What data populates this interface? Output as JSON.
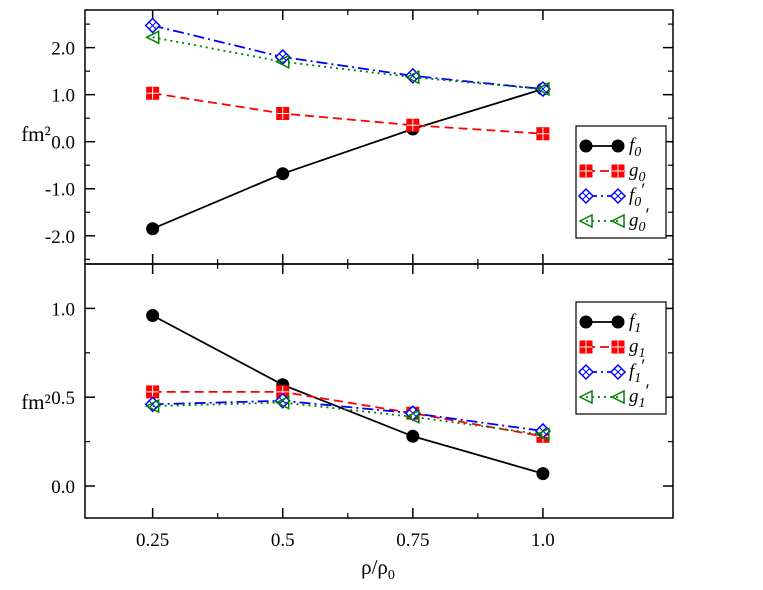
{
  "chart_data": [
    {
      "type": "line",
      "panel": "top",
      "title": "",
      "xlabel": "",
      "ylabel": "fm²",
      "x": [
        0.25,
        0.5,
        0.75,
        1.0
      ],
      "xlim": [
        0.12,
        1.25
      ],
      "ylim": [
        -2.6,
        2.8
      ],
      "yticks": [
        -2.0,
        -1.0,
        0.0,
        1.0,
        2.0
      ],
      "ytick_labels": [
        "-2.0",
        "-1.0",
        "0.0",
        "1.0",
        "2.0"
      ],
      "legend_position": "right",
      "series": [
        {
          "name": "f0",
          "label": "f",
          "sub": "0",
          "prime": false,
          "values": [
            -1.85,
            -0.68,
            0.27,
            1.12
          ],
          "color": "#000000",
          "marker": "circle",
          "dash": "solid"
        },
        {
          "name": "g0",
          "label": "g",
          "sub": "0",
          "prime": false,
          "values": [
            1.03,
            0.6,
            0.35,
            0.17
          ],
          "color": "#ff0000",
          "marker": "square",
          "dash": "dashed"
        },
        {
          "name": "f0'",
          "label": "f",
          "sub": "0",
          "prime": true,
          "values": [
            2.47,
            1.8,
            1.4,
            1.12
          ],
          "color": "#0000ff",
          "marker": "diamond",
          "dash": "dashdot"
        },
        {
          "name": "g0'",
          "label": "g",
          "sub": "0",
          "prime": true,
          "values": [
            2.22,
            1.7,
            1.37,
            1.12
          ],
          "color": "#008000",
          "marker": "triangle",
          "dash": "dotted"
        }
      ]
    },
    {
      "type": "line",
      "panel": "bottom",
      "title": "",
      "xlabel": "ρ/ρ0",
      "xlabel_main": "ρ/ρ",
      "xlabel_sub": "0",
      "ylabel": "fm²",
      "x": [
        0.25,
        0.5,
        0.75,
        1.0
      ],
      "xlim": [
        0.12,
        1.25
      ],
      "ylim": [
        -0.18,
        1.25
      ],
      "xticks": [
        0.25,
        0.5,
        0.75,
        1.0
      ],
      "xtick_labels": [
        "0.25",
        "0.5",
        "0.75",
        "1.0"
      ],
      "yticks": [
        0.0,
        0.5,
        1.0
      ],
      "ytick_labels": [
        "0.0",
        "0.5",
        "1.0"
      ],
      "legend_position": "right",
      "series": [
        {
          "name": "f1",
          "label": "f",
          "sub": "1",
          "prime": false,
          "values": [
            0.96,
            0.57,
            0.28,
            0.07
          ],
          "color": "#000000",
          "marker": "circle",
          "dash": "solid"
        },
        {
          "name": "g1",
          "label": "g",
          "sub": "1",
          "prime": false,
          "values": [
            0.53,
            0.53,
            0.41,
            0.28
          ],
          "color": "#ff0000",
          "marker": "square",
          "dash": "dashed"
        },
        {
          "name": "f1'",
          "label": "f",
          "sub": "1",
          "prime": true,
          "values": [
            0.46,
            0.48,
            0.41,
            0.31
          ],
          "color": "#0000ff",
          "marker": "diamond",
          "dash": "dashdot"
        },
        {
          "name": "g1'",
          "label": "g",
          "sub": "1",
          "prime": true,
          "values": [
            0.45,
            0.47,
            0.39,
            0.29
          ],
          "color": "#008000",
          "marker": "triangle",
          "dash": "dotted"
        }
      ]
    }
  ]
}
